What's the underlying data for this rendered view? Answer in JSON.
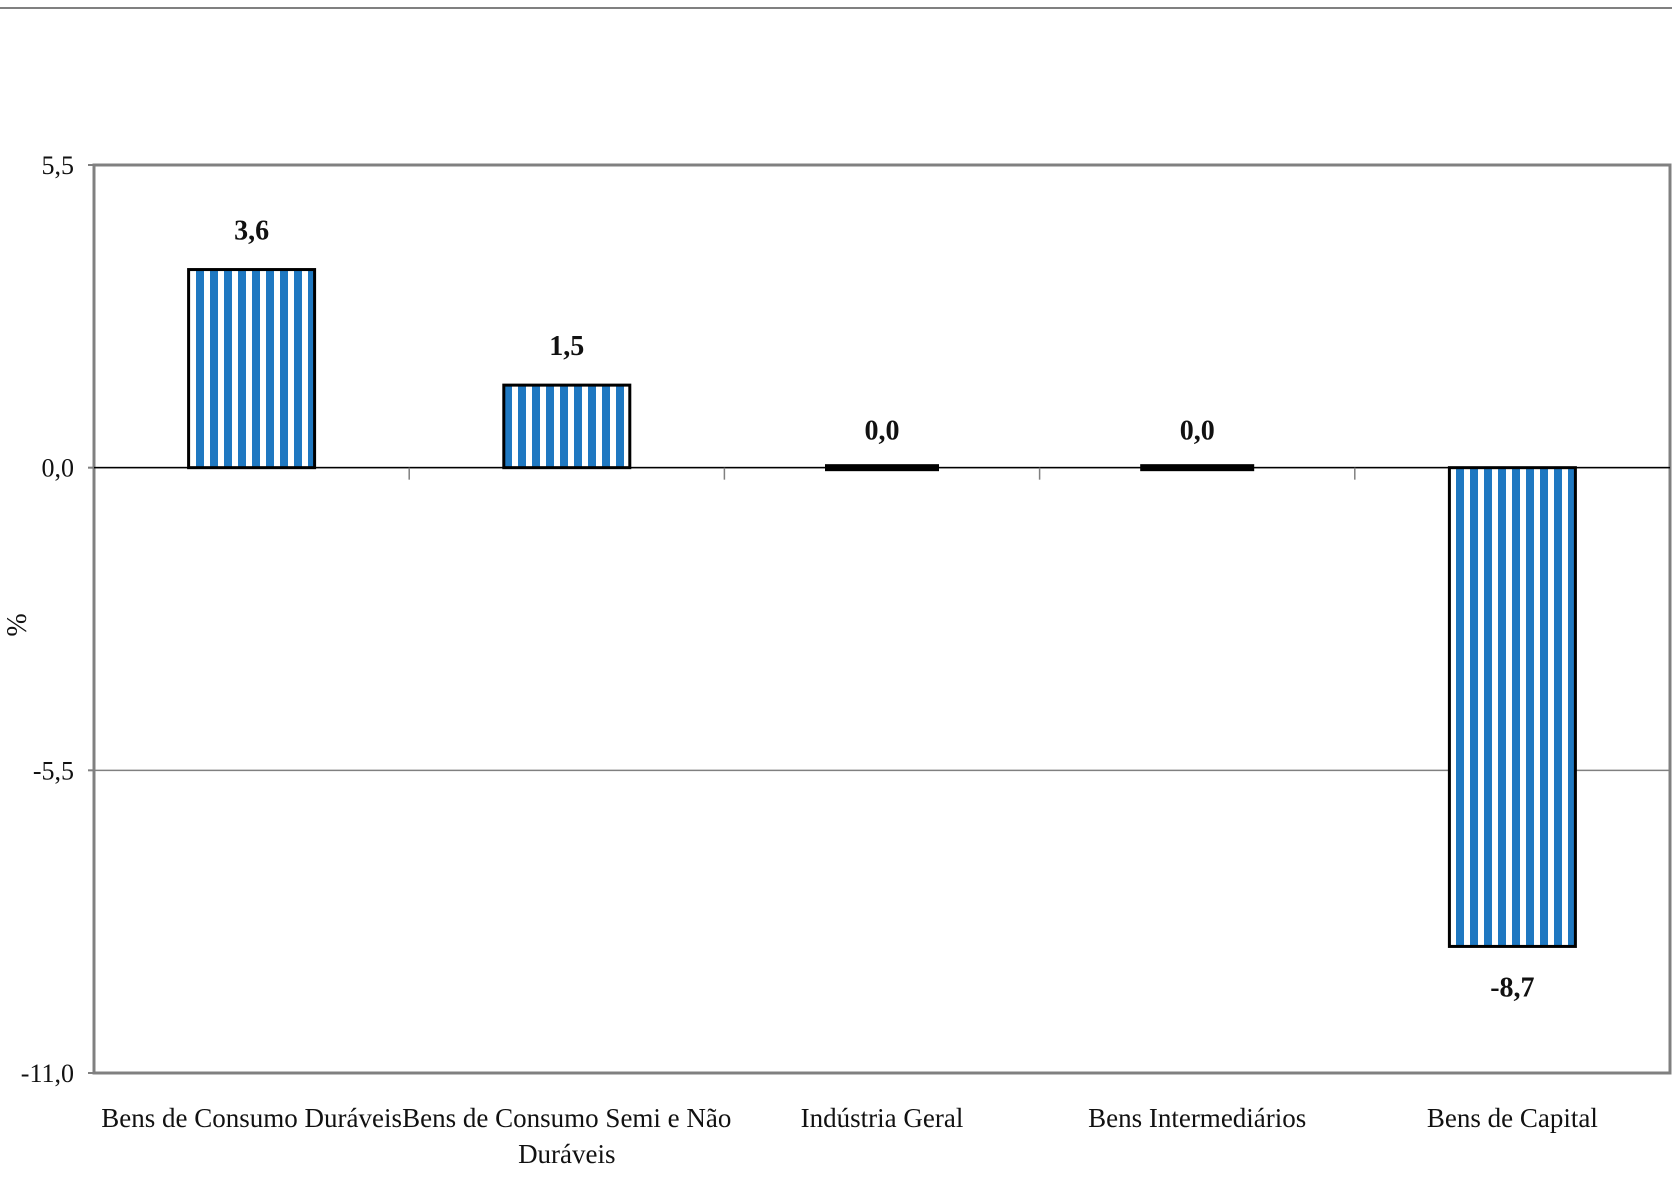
{
  "chart_data": {
    "type": "bar",
    "categories": [
      "Bens de Consumo Duráveis",
      "Bens de Consumo Semi e Não Duráveis",
      "Indústria Geral",
      "Bens Intermediários",
      "Bens de Capital"
    ],
    "category_lines": [
      [
        "Bens de Consumo Duráveis"
      ],
      [
        "Bens de Consumo Semi e Não",
        "Duráveis"
      ],
      [
        "Indústria Geral"
      ],
      [
        "Bens Intermediários"
      ],
      [
        "Bens de Capital"
      ]
    ],
    "values": [
      3.6,
      1.5,
      0.0,
      0.0,
      -8.7
    ],
    "value_labels": [
      "3,6",
      "1,5",
      "0,0",
      "0,0",
      "-8,7"
    ],
    "ylabel": "%",
    "ylim": [
      -11.0,
      5.5
    ],
    "yticks": [
      5.5,
      0.0,
      -5.5,
      -11.0
    ],
    "ytick_labels": [
      "5,5",
      "0,0",
      "-5,5",
      "-11,0"
    ],
    "grid": true,
    "bar_fill": "vertical stripes",
    "colors": {
      "bar_stripe": "#1f78c1",
      "bar_background": "#ffffff",
      "bar_border": "#000000",
      "plot_border": "#808080",
      "gridline": "#808080"
    }
  }
}
